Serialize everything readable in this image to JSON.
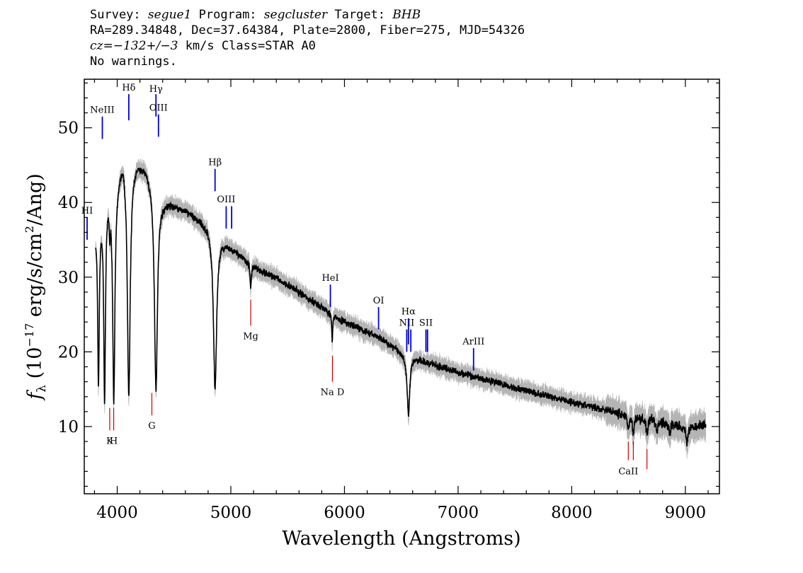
{
  "header": {
    "line1": {
      "survey_label": "Survey:",
      "survey": "segue1",
      "program_label": "Program:",
      "program": "segcluster",
      "target_label": "Target:",
      "target": "BHB"
    },
    "line2": "RA=289.34848, Dec=37.64384, Plate=2800, Fiber=275, MJD=54326",
    "line3": {
      "cz": "cz=−132+/−3",
      "rest": " km/s Class=STAR A0"
    },
    "line4": "No warnings."
  },
  "colors": {
    "spectrum": "#000000",
    "error": "#b4b4b4",
    "emission": "#0000cc",
    "absorption": "#cc0000",
    "axis": "#000000"
  },
  "chart_data": {
    "type": "line",
    "xlabel": "Wavelength (Angstroms)",
    "ylabel": "f_λ (10^-17 erg/s/cm^2/Ang)",
    "xlim": [
      3710,
      9300
    ],
    "ylim": [
      1,
      56.5
    ],
    "x_ticks": [
      4000,
      5000,
      6000,
      7000,
      8000,
      9000
    ],
    "y_ticks": [
      10,
      20,
      30,
      40,
      50
    ],
    "grid": false,
    "continuum": [
      [
        3810,
        37
      ],
      [
        3900,
        42
      ],
      [
        4000,
        44
      ],
      [
        4050,
        47
      ],
      [
        4150,
        46
      ],
      [
        4250,
        45
      ],
      [
        4400,
        40.5
      ],
      [
        4600,
        39
      ],
      [
        4800,
        37
      ],
      [
        4960,
        34.5
      ],
      [
        5200,
        31.5
      ],
      [
        5500,
        29
      ],
      [
        5800,
        26
      ],
      [
        6000,
        24
      ],
      [
        6300,
        22
      ],
      [
        6500,
        20
      ],
      [
        6700,
        18.7
      ],
      [
        7000,
        17.3
      ],
      [
        7300,
        16
      ],
      [
        7600,
        14.8
      ],
      [
        8000,
        13.3
      ],
      [
        8500,
        11.5
      ],
      [
        9000,
        10
      ],
      [
        9180,
        10.2
      ]
    ],
    "absorption_features": [
      {
        "x": 3835,
        "depth": 22,
        "width": 10
      },
      {
        "x": 3889,
        "depth": 27,
        "width": 11
      },
      {
        "x": 3934,
        "depth": 4,
        "width": 6
      },
      {
        "x": 3970,
        "depth": 29,
        "width": 14
      },
      {
        "x": 4102,
        "depth": 32,
        "width": 18
      },
      {
        "x": 4341,
        "depth": 27,
        "width": 19
      },
      {
        "x": 4861,
        "depth": 21,
        "width": 20
      },
      {
        "x": 5175,
        "depth": 3,
        "width": 8
      },
      {
        "x": 5892,
        "depth": 3.5,
        "width": 6
      },
      {
        "x": 6563,
        "depth": 8,
        "width": 16
      },
      {
        "x": 8498,
        "depth": 1.8,
        "width": 10
      },
      {
        "x": 8542,
        "depth": 2.2,
        "width": 10
      },
      {
        "x": 8662,
        "depth": 2,
        "width": 10
      },
      {
        "x": 8750,
        "depth": 1.6,
        "width": 10
      },
      {
        "x": 8863,
        "depth": 1.5,
        "width": 10
      },
      {
        "x": 9015,
        "depth": 2.5,
        "width": 10
      }
    ],
    "line_markers": [
      {
        "label": "HI",
        "x": 3735,
        "y0": 35.0,
        "y1": 38.0,
        "color": "emission",
        "label_y": 38.5
      },
      {
        "label": "NeIII",
        "x": 3869,
        "y0": 48.5,
        "y1": 51.5,
        "color": "emission",
        "label_y": 52.0
      },
      {
        "label": "Hδ",
        "x": 4102,
        "y0": 51.0,
        "y1": 54.5,
        "color": "emission",
        "label_y": 55.0
      },
      {
        "label": "Hγ",
        "x": 4341,
        "y0": 51.5,
        "y1": 54.5,
        "color": "emission",
        "label_y": 54.8
      },
      {
        "label": "OIII",
        "x": 4363,
        "y0": 48.8,
        "y1": 51.8,
        "color": "emission",
        "label_y": 52.3
      },
      {
        "label": "Hβ",
        "x": 4861,
        "y0": 41.5,
        "y1": 44.5,
        "color": "emission",
        "label_y": 45.0
      },
      {
        "label": "OIII",
        "x": 4959,
        "y0": 36.5,
        "y1": 39.5,
        "color": "emission",
        "label_y": 40.0
      },
      {
        "label": "",
        "x": 5007,
        "y0": 36.5,
        "y1": 39.5,
        "color": "emission",
        "label_y": 0
      },
      {
        "label": "HeI",
        "x": 5876,
        "y0": 26.0,
        "y1": 29.0,
        "color": "emission",
        "label_y": 29.5
      },
      {
        "label": "OI",
        "x": 6300,
        "y0": 23.0,
        "y1": 26.0,
        "color": "emission",
        "label_y": 26.5
      },
      {
        "label": "NII",
        "x": 6548,
        "y0": 20.0,
        "y1": 23.0,
        "color": "emission",
        "label_y": 23.5
      },
      {
        "label": "Hα",
        "x": 6563,
        "y0": 21.0,
        "y1": 24.5,
        "color": "emission",
        "label_y": 25.0
      },
      {
        "label": "",
        "x": 6584,
        "y0": 20.0,
        "y1": 23.0,
        "color": "emission",
        "label_y": 0
      },
      {
        "label": "SII",
        "x": 6717,
        "y0": 20.0,
        "y1": 23.0,
        "color": "emission",
        "label_y": 23.5
      },
      {
        "label": "",
        "x": 6731,
        "y0": 20.0,
        "y1": 23.0,
        "color": "emission",
        "label_y": 0
      },
      {
        "label": "ArIII",
        "x": 7136,
        "y0": 17.5,
        "y1": 20.5,
        "color": "emission",
        "label_y": 21.0
      },
      {
        "label": "K",
        "x": 3934,
        "y0": 9.5,
        "y1": 12.5,
        "color": "absorption",
        "label_y": 7.7
      },
      {
        "label": "H",
        "x": 3969,
        "y0": 9.5,
        "y1": 12.5,
        "color": "absorption",
        "label_y": 7.7
      },
      {
        "label": "G",
        "x": 4305,
        "y0": 11.5,
        "y1": 14.5,
        "color": "absorption",
        "label_y": 9.7
      },
      {
        "label": "Mg",
        "x": 5175,
        "y0": 23.5,
        "y1": 27.0,
        "color": "absorption",
        "label_y": 21.7
      },
      {
        "label": "Na D",
        "x": 5894,
        "y0": 16.0,
        "y1": 19.5,
        "color": "absorption",
        "label_y": 14.2
      },
      {
        "label": "CaII",
        "x": 8498,
        "y0": 5.5,
        "y1": 8.0,
        "color": "absorption",
        "label_y": 3.6
      },
      {
        "label": "",
        "x": 8542,
        "y0": 5.5,
        "y1": 8.0,
        "color": "absorption",
        "label_y": 0
      },
      {
        "label": "",
        "x": 8662,
        "y0": 4.3,
        "y1": 7.0,
        "color": "absorption",
        "label_y": 0
      }
    ]
  }
}
